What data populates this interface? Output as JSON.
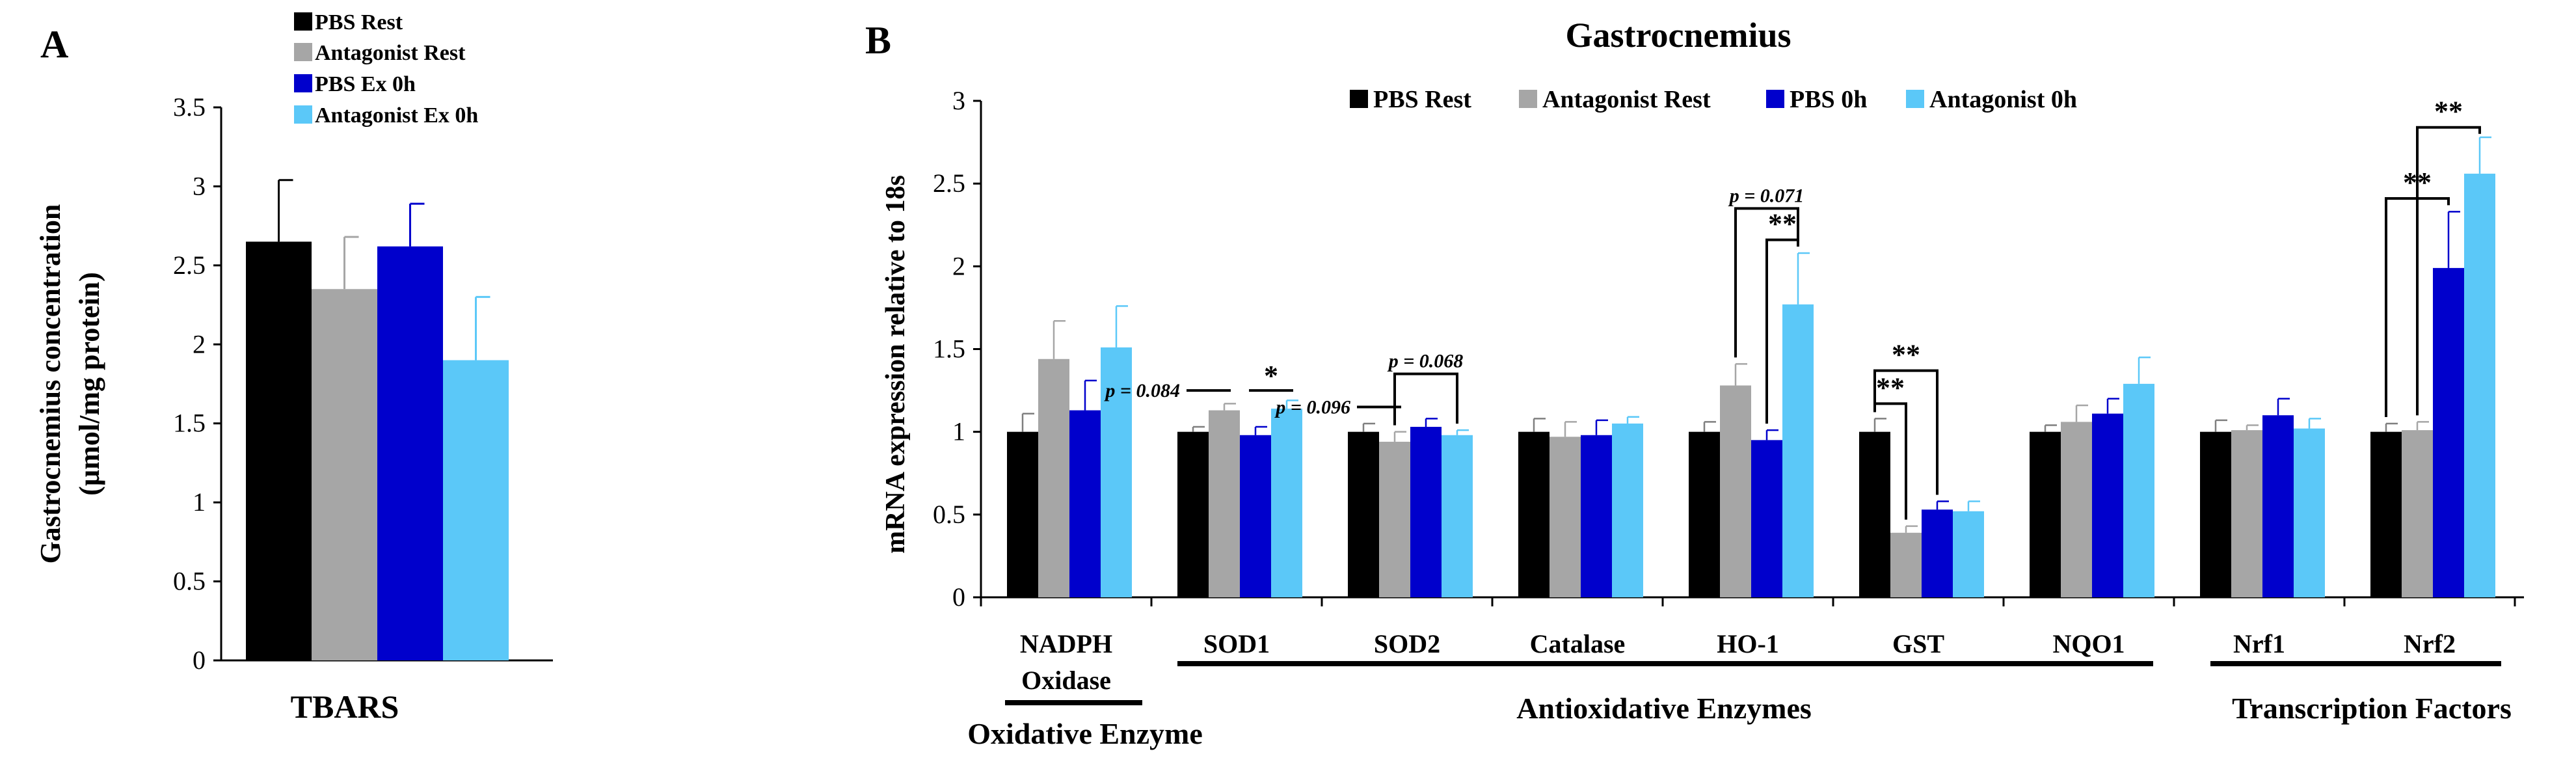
{
  "colors": {
    "pbs_rest": "#000000",
    "antagonist_rest": "#a6a6a6",
    "pbs_ex": "#0000cc",
    "antagonist_ex": "#5bc8f8"
  },
  "chart_data": [
    {
      "type": "bar",
      "panel_label": "A",
      "title": "",
      "categories": [
        "TBARS"
      ],
      "ylabel_line1": "Gastrocnemius concentration",
      "ylabel_line2": "(µmol/mg protein)",
      "ylim": [
        0,
        3.5
      ],
      "yticks": [
        "0",
        "0.5",
        "1",
        "1.5",
        "2",
        "2.5",
        "3",
        "3.5"
      ],
      "legend_position": "top",
      "series": [
        {
          "name": "PBS Rest",
          "color_key": "pbs_rest",
          "values": [
            2.65
          ],
          "errors": [
            0.39
          ]
        },
        {
          "name": "Antagonist Rest",
          "color_key": "antagonist_rest",
          "values": [
            2.35
          ],
          "errors": [
            0.33
          ]
        },
        {
          "name": "PBS Ex 0h",
          "color_key": "pbs_ex",
          "values": [
            2.62
          ],
          "errors": [
            0.27
          ]
        },
        {
          "name": "Antagonist Ex 0h",
          "color_key": "antagonist_ex",
          "values": [
            1.9
          ],
          "errors": [
            0.4
          ]
        }
      ]
    },
    {
      "type": "bar",
      "panel_label": "B",
      "title": "Gastrocnemius",
      "ylabel": "mRNA expression relative to 18s",
      "ylim": [
        0,
        3
      ],
      "yticks": [
        "0",
        "0.5",
        "1",
        "1.5",
        "2",
        "2.5",
        "3"
      ],
      "legend_position": "top",
      "categories": [
        "NADPH Oxidase",
        "SOD1",
        "SOD2",
        "Catalase",
        "HO-1",
        "GST",
        "NQO1",
        "Nrf1",
        "Nrf2"
      ],
      "category_lines": [
        [
          "NADPH",
          "Oxidase"
        ],
        [
          "SOD1"
        ],
        [
          "SOD2"
        ],
        [
          "Catalase"
        ],
        [
          "HO-1"
        ],
        [
          "GST"
        ],
        [
          "NQO1"
        ],
        [
          "Nrf1"
        ],
        [
          "Nrf2"
        ]
      ],
      "series": [
        {
          "name": "PBS Rest",
          "color_key": "pbs_rest",
          "values": [
            1.0,
            1.0,
            1.0,
            1.0,
            1.0,
            1.0,
            1.0,
            1.0,
            1.0
          ],
          "errors": [
            0.11,
            0.03,
            0.05,
            0.08,
            0.06,
            0.08,
            0.04,
            0.07,
            0.05
          ]
        },
        {
          "name": "Antagonist Rest",
          "color_key": "antagonist_rest",
          "values": [
            1.44,
            1.13,
            0.94,
            0.97,
            1.28,
            0.39,
            1.06,
            1.01,
            1.01
          ],
          "errors": [
            0.23,
            0.04,
            0.06,
            0.09,
            0.13,
            0.04,
            0.1,
            0.03,
            0.05
          ]
        },
        {
          "name": "PBS 0h",
          "color_key": "pbs_ex",
          "values": [
            1.13,
            0.98,
            1.03,
            0.98,
            0.95,
            0.53,
            1.11,
            1.1,
            1.99
          ],
          "errors": [
            0.18,
            0.05,
            0.05,
            0.09,
            0.06,
            0.05,
            0.09,
            0.1,
            0.34
          ]
        },
        {
          "name": "Antagonist 0h",
          "color_key": "antagonist_ex",
          "values": [
            1.51,
            1.14,
            0.98,
            1.05,
            1.77,
            0.52,
            1.29,
            1.02,
            2.56
          ],
          "errors": [
            0.25,
            0.05,
            0.03,
            0.04,
            0.31,
            0.06,
            0.16,
            0.06,
            0.22
          ]
        }
      ],
      "annotations": [
        {
          "text": "p = 0.084",
          "category": 1,
          "from": 0,
          "to": 1,
          "y": 1.25,
          "style": "flat"
        },
        {
          "text": "*",
          "category": 1,
          "from": 2,
          "to": 3,
          "y": 1.25,
          "style": "flat"
        },
        {
          "text": "p = 0.096",
          "category": 2,
          "from": 0,
          "to": 1,
          "y": 1.15,
          "style": "flat"
        },
        {
          "text": "p = 0.068",
          "category": 2,
          "from": 1,
          "to": 3,
          "y": 1.35,
          "style": "bracket"
        },
        {
          "text": "p = 0.071",
          "category": 4,
          "from": 1,
          "to": 3,
          "y": 2.35,
          "style": "bracket"
        },
        {
          "text": "**",
          "category": 4,
          "from": 2,
          "to": 3,
          "y": 2.16,
          "style": "bracket"
        },
        {
          "text": "**",
          "category": 5,
          "from": 0,
          "to": 2,
          "y": 1.37,
          "style": "bracket"
        },
        {
          "text": "**",
          "category": 5,
          "from": 0,
          "to": 1,
          "y": 1.17,
          "style": "bracket"
        },
        {
          "text": "**",
          "category": 8,
          "from": 0,
          "to": 2,
          "y": 2.41,
          "style": "bracket"
        },
        {
          "text": "**",
          "category": 8,
          "from": 1,
          "to": 3,
          "y": 2.84,
          "style": "bracket"
        }
      ],
      "groups": [
        {
          "label": "Oxidative Enzyme",
          "from": 0,
          "to": 0
        },
        {
          "label": "Antioxidative Enzymes",
          "from": 1,
          "to": 6
        },
        {
          "label": "Transcription  Factors",
          "from": 7,
          "to": 8
        }
      ]
    }
  ]
}
